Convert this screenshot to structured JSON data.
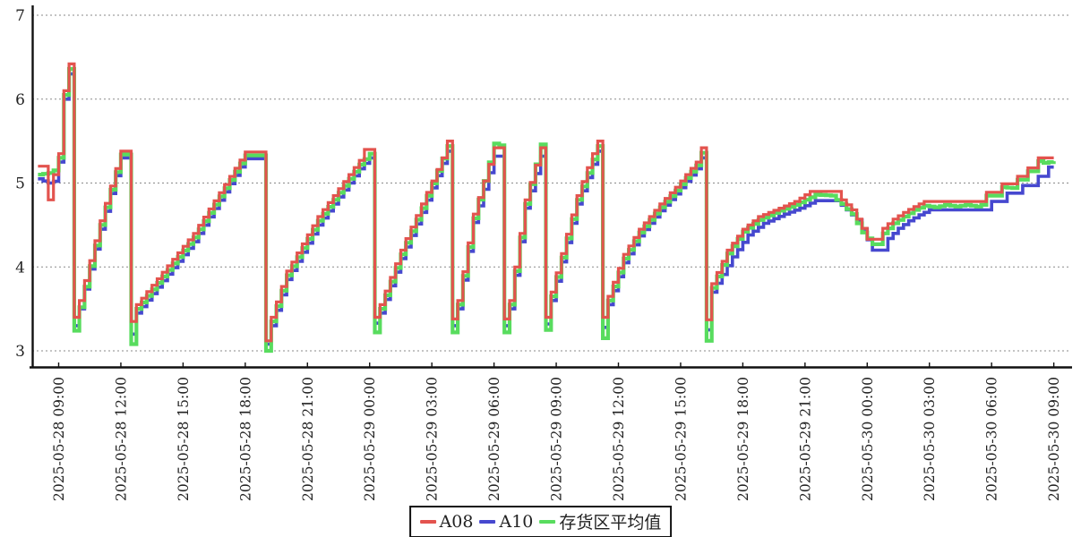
{
  "chart_data": {
    "type": "line",
    "title": "",
    "xlabel": "",
    "ylabel": "",
    "grid": "horizontal-dashed",
    "legend_position": "bottom-center",
    "y_axis": {
      "ticks": [
        3,
        4,
        5,
        6,
        7
      ],
      "range": [
        2.8,
        7.1
      ]
    },
    "x_axis": {
      "tick_hours": [
        0,
        3,
        6,
        9,
        12,
        15,
        18,
        21,
        24,
        27,
        30,
        33,
        36,
        39,
        42,
        45,
        48
      ],
      "tick_labels": [
        "2025-05-28 09:00",
        "2025-05-28 12:00",
        "2025-05-28 15:00",
        "2025-05-28 18:00",
        "2025-05-28 21:00",
        "2025-05-29 00:00",
        "2025-05-29 03:00",
        "2025-05-29 06:00",
        "2025-05-29 09:00",
        "2025-05-29 12:00",
        "2025-05-29 15:00",
        "2025-05-29 18:00",
        "2025-05-29 21:00",
        "2025-05-30 00:00",
        "2025-05-30 03:00",
        "2025-05-30 06:00",
        "2025-05-30 09:00"
      ]
    },
    "time_range_hours": [
      -1,
      48
    ],
    "step_hours": 0.25,
    "draw_order": [
      1,
      2,
      0
    ],
    "series": [
      {
        "name": "A08",
        "color": "#e3534e",
        "width": 3.2,
        "keypoints": [
          [
            -1,
            5.2
          ],
          [
            -0.75,
            5.2
          ],
          [
            -0.5,
            4.8
          ],
          [
            -0.25,
            5.1
          ],
          [
            0,
            5.35
          ],
          [
            0.25,
            6.1
          ],
          [
            0.5,
            6.42
          ],
          [
            0.75,
            3.4
          ],
          [
            1,
            3.6
          ],
          [
            2,
            4.55
          ],
          [
            3,
            5.38
          ],
          [
            3.25,
            5.38
          ],
          [
            3.5,
            3.35
          ],
          [
            3.75,
            3.55
          ],
          [
            6.5,
            4.4
          ],
          [
            9,
            5.37
          ],
          [
            9.75,
            5.37
          ],
          [
            10,
            3.12
          ],
          [
            10.25,
            3.4
          ],
          [
            11,
            3.95
          ],
          [
            12.5,
            4.6
          ],
          [
            14,
            5.1
          ],
          [
            14.5,
            5.27
          ],
          [
            14.75,
            5.4
          ],
          [
            15,
            5.4
          ],
          [
            15.25,
            3.4
          ],
          [
            15.5,
            3.55
          ],
          [
            16.5,
            4.2
          ],
          [
            17.5,
            4.75
          ],
          [
            18.5,
            5.3
          ],
          [
            18.75,
            5.5
          ],
          [
            19,
            3.38
          ],
          [
            19.25,
            3.6
          ],
          [
            20,
            4.63
          ],
          [
            21,
            5.42
          ],
          [
            21.25,
            5.42
          ],
          [
            21.5,
            3.38
          ],
          [
            21.75,
            3.6
          ],
          [
            22.5,
            4.8
          ],
          [
            23.25,
            5.42
          ],
          [
            23.5,
            3.4
          ],
          [
            23.75,
            3.7
          ],
          [
            25,
            4.85
          ],
          [
            25.75,
            5.35
          ],
          [
            26,
            5.5
          ],
          [
            26.25,
            3.4
          ],
          [
            26.5,
            3.65
          ],
          [
            27.25,
            4.15
          ],
          [
            28,
            4.45
          ],
          [
            29,
            4.75
          ],
          [
            29.75,
            4.95
          ],
          [
            30.25,
            5.1
          ],
          [
            30.75,
            5.25
          ],
          [
            31,
            5.42
          ],
          [
            31.25,
            3.37
          ],
          [
            31.5,
            3.8
          ],
          [
            32.25,
            4.2
          ],
          [
            33,
            4.45
          ],
          [
            33.75,
            4.6
          ],
          [
            34.75,
            4.7
          ],
          [
            35.5,
            4.78
          ],
          [
            36.25,
            4.9
          ],
          [
            37.5,
            4.9
          ],
          [
            37.75,
            4.8
          ],
          [
            38.25,
            4.68
          ],
          [
            38.5,
            4.57
          ],
          [
            38.75,
            4.46
          ],
          [
            39,
            4.33
          ],
          [
            39.5,
            4.33
          ],
          [
            39.75,
            4.46
          ],
          [
            40.25,
            4.57
          ],
          [
            40.75,
            4.65
          ],
          [
            41.25,
            4.72
          ],
          [
            41.75,
            4.78
          ],
          [
            44.5,
            4.78
          ],
          [
            44.75,
            4.89
          ],
          [
            45.25,
            4.89
          ],
          [
            45.5,
            4.99
          ],
          [
            46,
            4.99
          ],
          [
            46.25,
            5.08
          ],
          [
            46.5,
            5.08
          ],
          [
            46.75,
            5.18
          ],
          [
            47,
            5.18
          ],
          [
            47.25,
            5.3
          ],
          [
            48,
            5.3
          ]
        ]
      },
      {
        "name": "A10",
        "color": "#4648cf",
        "width": 3.6,
        "keypoints": [
          [
            -1,
            5.05
          ],
          [
            -0.5,
            5.0
          ],
          [
            -0.25,
            5.02
          ],
          [
            0,
            5.25
          ],
          [
            0.25,
            6.0
          ],
          [
            0.5,
            6.3
          ],
          [
            0.75,
            3.3
          ],
          [
            1,
            3.5
          ],
          [
            2,
            4.45
          ],
          [
            3,
            5.3
          ],
          [
            3.25,
            5.3
          ],
          [
            3.5,
            3.2
          ],
          [
            3.75,
            3.45
          ],
          [
            6.5,
            4.3
          ],
          [
            9,
            5.29
          ],
          [
            9.75,
            5.29
          ],
          [
            10,
            3.08
          ],
          [
            10.25,
            3.3
          ],
          [
            11,
            3.85
          ],
          [
            12.5,
            4.5
          ],
          [
            14,
            5.0
          ],
          [
            14.5,
            5.17
          ],
          [
            15,
            5.3
          ],
          [
            15.25,
            3.33
          ],
          [
            15.5,
            3.45
          ],
          [
            16.5,
            4.1
          ],
          [
            17.5,
            4.65
          ],
          [
            18.75,
            5.38
          ],
          [
            19,
            3.3
          ],
          [
            19.25,
            3.5
          ],
          [
            20,
            4.53
          ],
          [
            21,
            5.32
          ],
          [
            21.25,
            5.32
          ],
          [
            21.5,
            3.3
          ],
          [
            21.75,
            3.5
          ],
          [
            22.5,
            4.7
          ],
          [
            23.25,
            5.32
          ],
          [
            23.5,
            3.32
          ],
          [
            23.75,
            3.6
          ],
          [
            25,
            4.75
          ],
          [
            26,
            5.38
          ],
          [
            26.25,
            3.28
          ],
          [
            26.5,
            3.55
          ],
          [
            27.25,
            4.05
          ],
          [
            28,
            4.37
          ],
          [
            29,
            4.67
          ],
          [
            29.75,
            4.87
          ],
          [
            30.25,
            5.02
          ],
          [
            30.75,
            5.17
          ],
          [
            31,
            5.3
          ],
          [
            31.25,
            3.25
          ],
          [
            31.5,
            3.7
          ],
          [
            32.5,
            4.12
          ],
          [
            33.25,
            4.38
          ],
          [
            34,
            4.52
          ],
          [
            35,
            4.63
          ],
          [
            35.75,
            4.7
          ],
          [
            36.5,
            4.79
          ],
          [
            37.5,
            4.79
          ],
          [
            38,
            4.68
          ],
          [
            38.5,
            4.56
          ],
          [
            38.75,
            4.45
          ],
          [
            39.25,
            4.2
          ],
          [
            39.75,
            4.2
          ],
          [
            40,
            4.34
          ],
          [
            40.5,
            4.46
          ],
          [
            41,
            4.55
          ],
          [
            41.5,
            4.62
          ],
          [
            42,
            4.68
          ],
          [
            44.75,
            4.68
          ],
          [
            45,
            4.78
          ],
          [
            45.5,
            4.78
          ],
          [
            45.75,
            4.88
          ],
          [
            46.25,
            4.88
          ],
          [
            46.5,
            4.97
          ],
          [
            47,
            4.97
          ],
          [
            47.25,
            5.08
          ],
          [
            47.5,
            5.08
          ],
          [
            47.75,
            5.19
          ],
          [
            48,
            5.19
          ]
        ]
      },
      {
        "name": "存货区平均值",
        "color": "#58dc5e",
        "width": 4.2,
        "keypoints": [
          [
            -1,
            5.1
          ],
          [
            -0.5,
            5.12
          ],
          [
            -0.25,
            5.15
          ],
          [
            0,
            5.3
          ],
          [
            0.25,
            6.05
          ],
          [
            0.5,
            6.36
          ],
          [
            0.75,
            3.24
          ],
          [
            1,
            3.52
          ],
          [
            2,
            4.5
          ],
          [
            3,
            5.34
          ],
          [
            3.25,
            5.34
          ],
          [
            3.5,
            3.08
          ],
          [
            3.75,
            3.5
          ],
          [
            6.5,
            4.35
          ],
          [
            9,
            5.33
          ],
          [
            9.75,
            5.33
          ],
          [
            10,
            3.0
          ],
          [
            10.25,
            3.35
          ],
          [
            11,
            3.9
          ],
          [
            12.5,
            4.55
          ],
          [
            14,
            5.05
          ],
          [
            14.5,
            5.22
          ],
          [
            15,
            5.35
          ],
          [
            15.25,
            3.22
          ],
          [
            15.5,
            3.5
          ],
          [
            16.5,
            4.15
          ],
          [
            17.5,
            4.7
          ],
          [
            18.75,
            5.44
          ],
          [
            19,
            3.22
          ],
          [
            19.25,
            3.55
          ],
          [
            20,
            4.58
          ],
          [
            21,
            5.47
          ],
          [
            21.25,
            5.45
          ],
          [
            21.5,
            3.22
          ],
          [
            21.75,
            3.55
          ],
          [
            22.5,
            4.75
          ],
          [
            23.25,
            5.46
          ],
          [
            23.5,
            3.25
          ],
          [
            23.75,
            3.65
          ],
          [
            25,
            4.8
          ],
          [
            26,
            5.44
          ],
          [
            26.25,
            3.15
          ],
          [
            26.5,
            3.6
          ],
          [
            27.25,
            4.1
          ],
          [
            28,
            4.41
          ],
          [
            29,
            4.71
          ],
          [
            29.75,
            4.91
          ],
          [
            30.25,
            5.06
          ],
          [
            30.75,
            5.21
          ],
          [
            31,
            5.36
          ],
          [
            31.25,
            3.12
          ],
          [
            31.5,
            3.75
          ],
          [
            32.25,
            4.16
          ],
          [
            33,
            4.42
          ],
          [
            33.75,
            4.56
          ],
          [
            34.75,
            4.67
          ],
          [
            35.5,
            4.74
          ],
          [
            36.5,
            4.86
          ],
          [
            37.25,
            4.85
          ],
          [
            37.75,
            4.75
          ],
          [
            38.25,
            4.63
          ],
          [
            38.5,
            4.52
          ],
          [
            38.75,
            4.41
          ],
          [
            39.25,
            4.27
          ],
          [
            39.5,
            4.27
          ],
          [
            39.75,
            4.4
          ],
          [
            40.25,
            4.52
          ],
          [
            40.75,
            4.6
          ],
          [
            41.25,
            4.68
          ],
          [
            41.75,
            4.73
          ],
          [
            42.25,
            4.71
          ],
          [
            42.75,
            4.74
          ],
          [
            43.25,
            4.72
          ],
          [
            43.75,
            4.74
          ],
          [
            44.25,
            4.72
          ],
          [
            44.5,
            4.74
          ],
          [
            44.75,
            4.85
          ],
          [
            45.25,
            4.85
          ],
          [
            45.5,
            4.95
          ],
          [
            46,
            4.94
          ],
          [
            46.25,
            5.04
          ],
          [
            46.5,
            5.04
          ],
          [
            46.75,
            5.14
          ],
          [
            47,
            5.14
          ],
          [
            47.25,
            5.26
          ],
          [
            47.5,
            5.24
          ],
          [
            48,
            5.26
          ]
        ]
      }
    ]
  },
  "legend": {
    "items": [
      {
        "label": "A08",
        "color": "#e3534e"
      },
      {
        "label": "A10",
        "color": "#4648cf"
      },
      {
        "label": "存货区平均值",
        "color": "#58dc5e"
      }
    ]
  }
}
